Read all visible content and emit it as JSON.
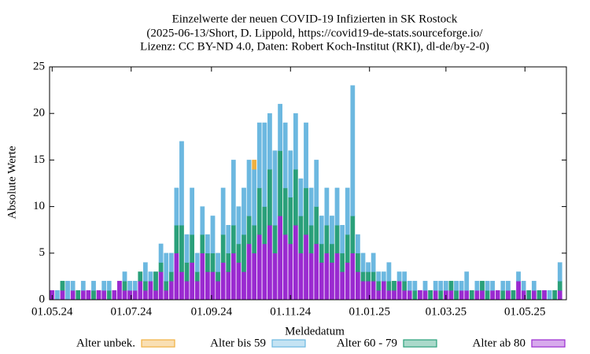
{
  "chart_data": {
    "type": "stacked-bar",
    "title": [
      "Einzelwerte der neuen COVID-19 Infizierten in SK Rostock",
      "(2025-06-13/Short, D. Lippold, https://covid19-de-stats.sourceforge.io/",
      "Lizenz: CC BY-ND 4.0, Daten: Robert Koch-Institut (RKI), dl-de/by-2-0)"
    ],
    "x_label": "Meldedatum",
    "y_label": "Absolute Werte",
    "xlim": [
      "29.04.24",
      "02.06.25"
    ],
    "xticks": [
      "01.05.24",
      "01.07.24",
      "01.09.24",
      "01.11.24",
      "01.01.25",
      "01.03.25",
      "01.05.25"
    ],
    "ylim": [
      0,
      25
    ],
    "yticks": [
      0,
      5,
      10,
      15,
      20,
      25
    ],
    "x": [
      "01.05.24",
      "05.05.24",
      "09.05.24",
      "13.05.24",
      "17.05.24",
      "21.05.24",
      "25.05.24",
      "29.05.24",
      "02.06.24",
      "06.06.24",
      "10.06.24",
      "14.06.24",
      "18.06.24",
      "22.06.24",
      "26.06.24",
      "30.06.24",
      "04.07.24",
      "08.07.24",
      "12.07.24",
      "16.07.24",
      "20.07.24",
      "24.07.24",
      "28.07.24",
      "01.08.24",
      "05.08.24",
      "09.08.24",
      "13.08.24",
      "17.08.24",
      "21.08.24",
      "25.08.24",
      "29.08.24",
      "02.09.24",
      "06.09.24",
      "10.09.24",
      "14.09.24",
      "18.09.24",
      "22.09.24",
      "26.09.24",
      "30.09.24",
      "04.10.24",
      "08.10.24",
      "12.10.24",
      "16.10.24",
      "20.10.24",
      "24.10.24",
      "28.10.24",
      "01.11.24",
      "05.11.24",
      "09.11.24",
      "13.11.24",
      "17.11.24",
      "21.11.24",
      "25.11.24",
      "29.11.24",
      "03.12.24",
      "07.12.24",
      "11.12.24",
      "15.12.24",
      "19.12.24",
      "23.12.24",
      "27.12.24",
      "31.12.24",
      "04.01.25",
      "08.01.25",
      "12.01.25",
      "16.01.25",
      "20.01.25",
      "24.01.25",
      "28.01.25",
      "01.02.25",
      "05.02.25",
      "09.02.25",
      "13.02.25",
      "17.02.25",
      "21.02.25",
      "25.02.25",
      "01.03.25",
      "05.03.25",
      "09.03.25",
      "13.03.25",
      "17.03.25",
      "21.03.25",
      "25.03.25",
      "29.03.25",
      "02.04.25",
      "06.04.25",
      "10.04.25",
      "14.04.25",
      "18.04.25",
      "22.04.25",
      "26.04.25",
      "30.04.25",
      "04.05.25",
      "08.05.25",
      "12.05.25",
      "16.05.25",
      "20.05.25",
      "24.05.25",
      "28.05.25"
    ],
    "series": [
      {
        "name": "Alter unbek.",
        "color": "#f0b040",
        "values": [
          0,
          0,
          0,
          0,
          0,
          0,
          0,
          0,
          0,
          0,
          0,
          0,
          0,
          0,
          0,
          0,
          0,
          0,
          0,
          0,
          0,
          0,
          0,
          0,
          0,
          0,
          0,
          0,
          0,
          0,
          0,
          0,
          0,
          0,
          0,
          0,
          0,
          0,
          0,
          1,
          0,
          0,
          0,
          0,
          0,
          0,
          0,
          0,
          0,
          0,
          0,
          0,
          0,
          0,
          0,
          0,
          0,
          0,
          0,
          0,
          0,
          0,
          0,
          0,
          0,
          0,
          0,
          0,
          0,
          0,
          0,
          0,
          0,
          0,
          0,
          0,
          0,
          0,
          0,
          0,
          0,
          0,
          0,
          0,
          0,
          0,
          0,
          0,
          0,
          0,
          0,
          0,
          0,
          0,
          0,
          0,
          0,
          0,
          0
        ]
      },
      {
        "name": "Alter bis 59",
        "color": "#6cb8e0",
        "values": [
          0,
          1,
          0,
          2,
          1,
          0,
          1,
          0,
          1,
          0,
          1,
          1,
          0,
          0,
          1,
          1,
          1,
          0,
          2,
          1,
          0,
          2,
          3,
          2,
          4,
          9,
          3,
          5,
          2,
          3,
          2,
          4,
          2,
          5,
          3,
          7,
          4,
          5,
          6,
          6,
          7,
          9,
          6,
          8,
          5,
          7,
          5,
          6,
          4,
          7,
          4,
          5,
          3,
          4,
          3,
          4,
          3,
          5,
          14,
          2,
          2,
          1,
          2,
          1,
          1,
          2,
          0,
          1,
          1,
          1,
          1,
          0,
          1,
          0,
          1,
          1,
          1,
          0,
          1,
          1,
          2,
          0,
          1,
          0,
          1,
          1,
          0,
          1,
          1,
          0,
          1,
          1,
          0,
          1,
          0,
          0,
          1,
          0,
          2
        ]
      },
      {
        "name": "Alter 60 - 79",
        "color": "#2aa07a",
        "values": [
          0,
          0,
          1,
          0,
          0,
          1,
          0,
          0,
          1,
          0,
          0,
          1,
          0,
          0,
          1,
          0,
          0,
          1,
          1,
          0,
          2,
          1,
          1,
          1,
          3,
          5,
          2,
          3,
          1,
          2,
          2,
          2,
          1,
          3,
          2,
          3,
          2,
          4,
          3,
          3,
          5,
          4,
          6,
          3,
          7,
          5,
          5,
          6,
          4,
          5,
          3,
          4,
          2,
          3,
          2,
          3,
          2,
          3,
          4,
          2,
          1,
          1,
          1,
          1,
          0,
          1,
          1,
          0,
          1,
          0,
          1,
          0,
          0,
          1,
          0,
          1,
          0,
          1,
          1,
          0,
          0,
          1,
          0,
          1,
          1,
          0,
          0,
          1,
          0,
          1,
          0,
          0,
          1,
          0,
          1,
          0,
          0,
          1,
          1
        ]
      },
      {
        "name": "Alter ab 80",
        "color": "#9a2ad0",
        "values": [
          1,
          0,
          1,
          0,
          1,
          0,
          1,
          1,
          0,
          1,
          1,
          0,
          1,
          2,
          1,
          1,
          1,
          2,
          1,
          2,
          1,
          3,
          1,
          2,
          5,
          3,
          2,
          4,
          2,
          5,
          3,
          3,
          2,
          4,
          3,
          5,
          4,
          3,
          6,
          5,
          7,
          6,
          8,
          5,
          9,
          7,
          6,
          8,
          5,
          7,
          5,
          6,
          4,
          5,
          4,
          5,
          3,
          4,
          5,
          3,
          2,
          2,
          2,
          1,
          2,
          1,
          1,
          2,
          1,
          1,
          0,
          1,
          1,
          0,
          1,
          0,
          1,
          1,
          0,
          1,
          1,
          0,
          1,
          1,
          0,
          1,
          1,
          0,
          1,
          0,
          2,
          1,
          0,
          1,
          0,
          1,
          0,
          0,
          1
        ]
      }
    ]
  }
}
